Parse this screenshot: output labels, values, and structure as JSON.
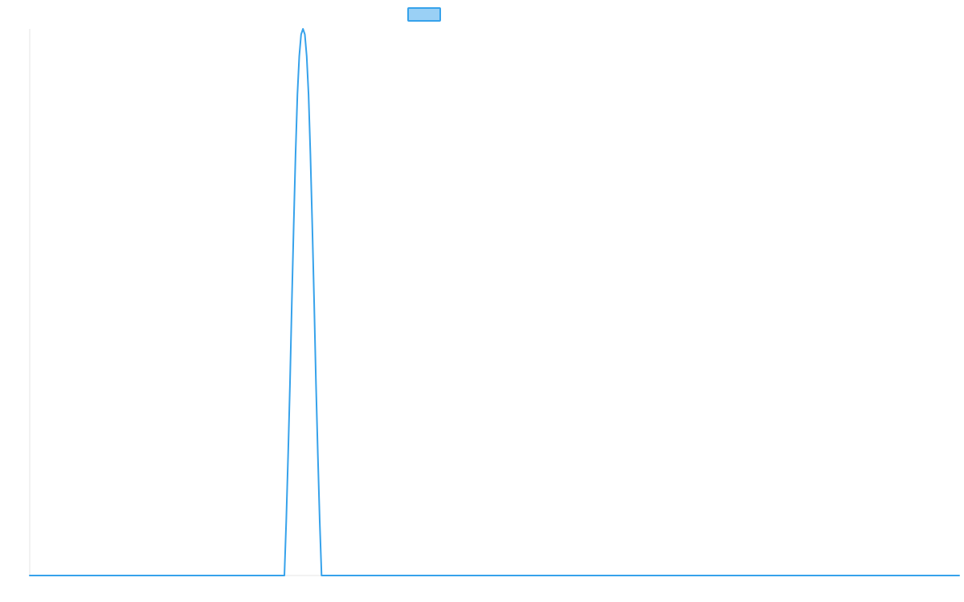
{
  "chart_data": {
    "type": "line",
    "title": "",
    "xlabel": "",
    "ylabel": "",
    "grid": false,
    "legend": "top-center",
    "xlim": [
      0,
      1000
    ],
    "ylim": [
      0,
      1
    ],
    "series": [
      {
        "color": "#36a2eb",
        "fill": "#9ad0f5",
        "x": [
          0,
          274,
          276,
          278,
          280,
          282,
          284,
          286,
          288,
          290,
          292,
          294,
          296,
          298,
          300,
          302,
          304,
          306,
          308,
          310,
          312,
          314,
          1000
        ],
        "y": [
          0,
          0,
          0.1,
          0.22,
          0.35,
          0.5,
          0.64,
          0.77,
          0.88,
          0.95,
          0.99,
          1.0,
          0.99,
          0.95,
          0.88,
          0.77,
          0.64,
          0.5,
          0.35,
          0.22,
          0.1,
          0,
          0
        ]
      }
    ]
  }
}
